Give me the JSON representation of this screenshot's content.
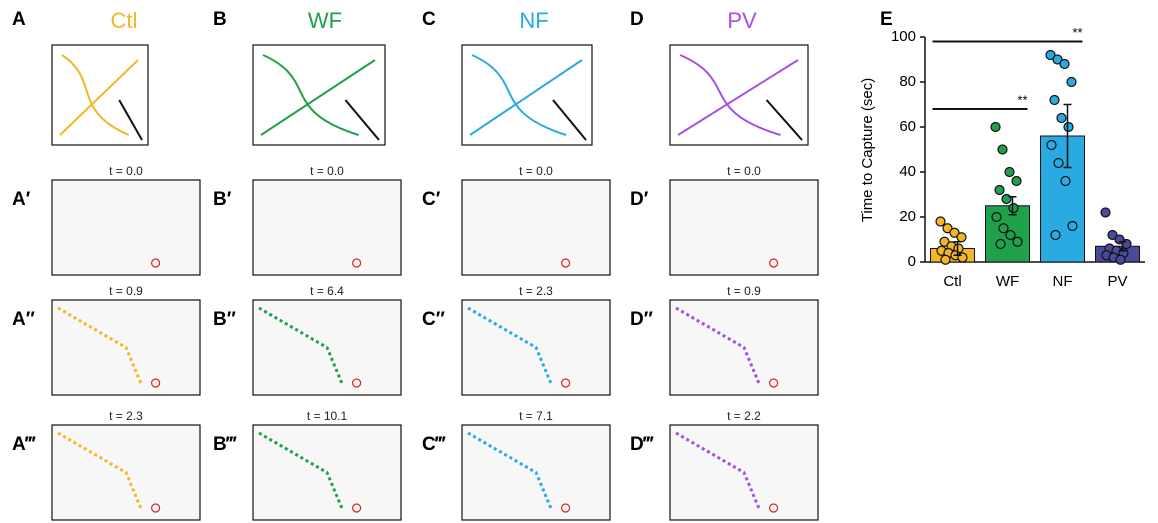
{
  "panels": [
    {
      "letter": "A",
      "title": "Ctl",
      "color": "#f2b626",
      "frames": [
        {
          "letter": "A′",
          "time": "t = 0.0"
        },
        {
          "letter": "A″",
          "time": "t = 0.9"
        },
        {
          "letter": "A‴",
          "time": "t = 2.3"
        }
      ]
    },
    {
      "letter": "B",
      "title": "WF",
      "color": "#1fa04a",
      "frames": [
        {
          "letter": "B′",
          "time": "t = 0.0"
        },
        {
          "letter": "B″",
          "time": "t = 6.4"
        },
        {
          "letter": "B‴",
          "time": "t = 10.1"
        }
      ]
    },
    {
      "letter": "C",
      "title": "NF",
      "color": "#29abe2",
      "frames": [
        {
          "letter": "C′",
          "time": "t = 0.0"
        },
        {
          "letter": "C″",
          "time": "t = 2.3"
        },
        {
          "letter": "C‴",
          "time": "t = 7.1"
        }
      ]
    },
    {
      "letter": "D",
      "title": "PV",
      "color": "#a64ee8",
      "frames": [
        {
          "letter": "D′",
          "time": "t = 0.0"
        },
        {
          "letter": "D″",
          "time": "t = 0.9"
        },
        {
          "letter": "D‴",
          "time": "t = 2.2"
        }
      ]
    }
  ],
  "chart_data": {
    "type": "bar",
    "panel_letter": "E",
    "ylabel": "Time to Capture (sec)",
    "categories": [
      "Ctl",
      "WF",
      "NF",
      "PV"
    ],
    "values": [
      6,
      25,
      56,
      7
    ],
    "errors": [
      3,
      4,
      14,
      2
    ],
    "colors": [
      "#f2b626",
      "#1fa04a",
      "#29abe2",
      "#4a4a9a"
    ],
    "points": [
      [
        18,
        15,
        13,
        11,
        9,
        7,
        6,
        5,
        4,
        3,
        2,
        1
      ],
      [
        60,
        50,
        40,
        36,
        32,
        28,
        24,
        20,
        15,
        12,
        9,
        8
      ],
      [
        92,
        90,
        88,
        80,
        72,
        64,
        60,
        52,
        44,
        36,
        16,
        12
      ],
      [
        22,
        12,
        10,
        8,
        6,
        5,
        4,
        3,
        2,
        1
      ]
    ],
    "ylim": [
      0,
      100
    ],
    "yticks": [
      0,
      20,
      40,
      60,
      80,
      100
    ],
    "annotations": [
      {
        "text": "**",
        "y": 68
      },
      {
        "text": "**",
        "y": 98
      }
    ]
  }
}
